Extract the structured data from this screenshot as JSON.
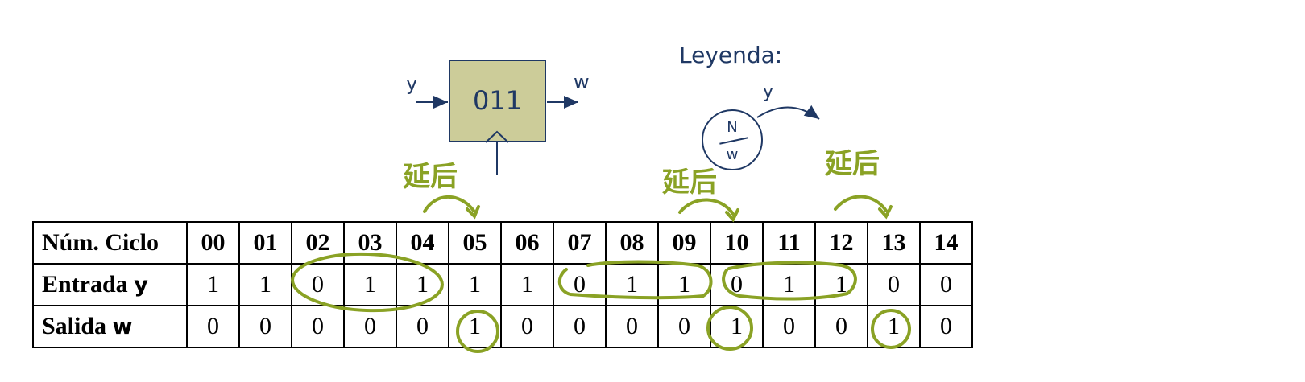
{
  "fsm": {
    "state_label": "011",
    "input_signal": "y",
    "output_signal": "w"
  },
  "legend": {
    "title": "Leyenda:",
    "state_top": "N",
    "state_bottom": "w",
    "transition_label": "y"
  },
  "annotations": {
    "delay_text": "延后",
    "delay_marks": [
      "04→05",
      "09→10",
      "12→13"
    ]
  },
  "table": {
    "header_label": "Núm. Ciclo",
    "cycles": [
      "00",
      "01",
      "02",
      "03",
      "04",
      "05",
      "06",
      "07",
      "08",
      "09",
      "10",
      "11",
      "12",
      "13",
      "14"
    ],
    "input_label_text": "Entrada ",
    "input_label_var": "y",
    "input_values": [
      "1",
      "1",
      "0",
      "1",
      "1",
      "1",
      "1",
      "0",
      "1",
      "1",
      "0",
      "1",
      "1",
      "0",
      "0"
    ],
    "output_label_text": "Salida ",
    "output_label_var": "w",
    "output_values": [
      "0",
      "0",
      "0",
      "0",
      "0",
      "1",
      "0",
      "0",
      "0",
      "0",
      "1",
      "0",
      "0",
      "1",
      "0"
    ]
  },
  "colors": {
    "ink": "#1f3864",
    "fsm_fill": "#cccc99",
    "annotation": "#8aa225"
  }
}
